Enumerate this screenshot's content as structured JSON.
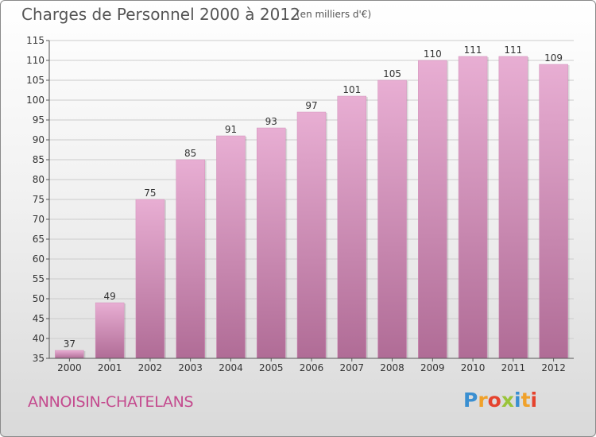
{
  "title": "Charges de Personnel 2000 à 2012",
  "subtitle": "(en milliers d'€)",
  "commune": "ANNOISIN-CHATELANS",
  "logo": {
    "text": "Proxiti"
  },
  "colors": {
    "bar_top": "#e8aed3",
    "bar_bottom": "#b06c96",
    "bar_side": "#d292bb",
    "grid": "#cccccc",
    "commune_text": "#c44a8e"
  },
  "chart_data": {
    "type": "bar",
    "categories": [
      "2000",
      "2001",
      "2002",
      "2003",
      "2004",
      "2005",
      "2006",
      "2007",
      "2008",
      "2009",
      "2010",
      "2011",
      "2012"
    ],
    "values": [
      37,
      49,
      75,
      85,
      91,
      93,
      97,
      101,
      105,
      110,
      111,
      111,
      109
    ],
    "title": "Charges de Personnel 2000 à 2012",
    "xlabel": "",
    "ylabel": "",
    "ylim": [
      35,
      115
    ],
    "yticks": [
      35,
      40,
      45,
      50,
      55,
      60,
      65,
      70,
      75,
      80,
      85,
      90,
      95,
      100,
      105,
      110,
      115
    ],
    "grid": true,
    "legend": "none"
  }
}
